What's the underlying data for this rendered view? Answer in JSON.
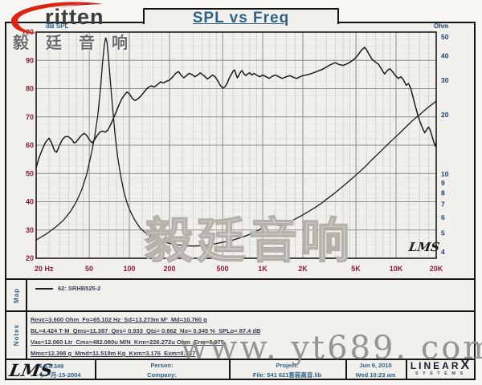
{
  "title": "SPL vs Freq",
  "logo": {
    "brand": "ritten",
    "chinese": "毅廷音响"
  },
  "watermarks": {
    "chart": "毅廷音响",
    "site": "www. yt689. com",
    "lms_signature": "LMS"
  },
  "map": {
    "label": "Map",
    "legend": "62: SRHB525-2"
  },
  "notes": {
    "label": "Notes",
    "lines": [
      "Revc=3.600 Ohm  Fo=65.102 Hz  Sd=13.273m M²  Md=10.760 g",
      "BL=4.424 T·M  Qms=11.387  Qes= 0.933  Qts= 0.862  No= 0.345 %  SPLo= 87.4 dB",
      "Vas=12.060 Ltr  Cms=482.080u M/N  Krm=226.272u Ohm  Erm=0.975",
      "Mms=12.398 g  Mmd=11.518m Kg  Kxm=3.176  Exm=0.737"
    ]
  },
  "footer": {
    "lms_logo": "LMS",
    "version": "4.5.0.349",
    "version_date": "十一月-15-2004",
    "person_label": "Person:",
    "company_label": "Company:",
    "project_label": "Project:",
    "project_file": "File: 541  621套装高音.lib",
    "date": "Jun  9, 2010",
    "time": "Wed 10:23 am",
    "brand_linear": "LINEAR",
    "brand_x": "X",
    "brand_systems": "S Y S T E M S"
  },
  "colors": {
    "accent_blue": "#2d6288",
    "tick_red": "#8a1c2e",
    "tick_navy": "#1f3f77",
    "logo_red": "#de2411",
    "curve": "#1b1b1b"
  },
  "chart_data": {
    "type": "line",
    "title": "SPL vs Freq",
    "x_axis": {
      "unit": "Hz",
      "scale": "log",
      "min": 20,
      "max": 20000,
      "ticks": [
        "20 Hz",
        "50",
        "100",
        "200",
        "500",
        "1K",
        "2K",
        "5K",
        "10K",
        "20K"
      ],
      "tick_values": [
        20,
        50,
        100,
        200,
        500,
        1000,
        2000,
        5000,
        10000,
        20000
      ]
    },
    "y_left": {
      "label": "dB SPL",
      "scale": "linear",
      "min": 20,
      "max": 100,
      "ticks": [
        100,
        90,
        80,
        70,
        60,
        50,
        40,
        30,
        20
      ]
    },
    "y_right": {
      "label": "Ohm",
      "scale": "log",
      "min": 4,
      "max": 50,
      "ticks": [
        50,
        40,
        30,
        20,
        10,
        9,
        8,
        7,
        6,
        5,
        4
      ]
    },
    "legend_position": "map-strip-below-chart",
    "grid": "dense log-log with dotted minors",
    "series": [
      {
        "name": "SPL (62: SRHB525-2)",
        "axis": "left",
        "unit": "dB",
        "points": [
          [
            20,
            52
          ],
          [
            21,
            55.5
          ],
          [
            22,
            58
          ],
          [
            23.5,
            61
          ],
          [
            25,
            62.5
          ],
          [
            26,
            61
          ],
          [
            27.5,
            58
          ],
          [
            28.5,
            57.5
          ],
          [
            30,
            60
          ],
          [
            31.5,
            62
          ],
          [
            33,
            63
          ],
          [
            35,
            63
          ],
          [
            37,
            62
          ],
          [
            38.5,
            60.8
          ],
          [
            40,
            61.2
          ],
          [
            42,
            62.5
          ],
          [
            44,
            63.6
          ],
          [
            46,
            64.2
          ],
          [
            48,
            63.4
          ],
          [
            50,
            62
          ],
          [
            52.5,
            60.8
          ],
          [
            55,
            62
          ],
          [
            57.5,
            63.5
          ],
          [
            60,
            64.6
          ],
          [
            63,
            65
          ],
          [
            66,
            64.6
          ],
          [
            69,
            65.4
          ],
          [
            72,
            67
          ],
          [
            76,
            69.5
          ],
          [
            80,
            72
          ],
          [
            84,
            74.5
          ],
          [
            88,
            76.5
          ],
          [
            92,
            77.8
          ],
          [
            96,
            78.8
          ],
          [
            100,
            78.2
          ],
          [
            105,
            76.6
          ],
          [
            110,
            75.8
          ],
          [
            116,
            76.4
          ],
          [
            122,
            77.4
          ],
          [
            130,
            79
          ],
          [
            138,
            80.4
          ],
          [
            146,
            81
          ],
          [
            154,
            80.6
          ],
          [
            162,
            81.4
          ],
          [
            172,
            82.4
          ],
          [
            180,
            82
          ],
          [
            190,
            82.6
          ],
          [
            200,
            83
          ],
          [
            212,
            84.2
          ],
          [
            224,
            85.6
          ],
          [
            234,
            86
          ],
          [
            244,
            84.8
          ],
          [
            256,
            83.8
          ],
          [
            268,
            84.6
          ],
          [
            280,
            85.4
          ],
          [
            295,
            85
          ],
          [
            310,
            84.2
          ],
          [
            325,
            84.8
          ],
          [
            340,
            85.6
          ],
          [
            355,
            84.9
          ],
          [
            370,
            84.2
          ],
          [
            385,
            83.4
          ],
          [
            400,
            84
          ],
          [
            420,
            84.8
          ],
          [
            440,
            84.2
          ],
          [
            460,
            82.8
          ],
          [
            480,
            81.2
          ],
          [
            500,
            80.2
          ],
          [
            520,
            80.6
          ],
          [
            540,
            81.8
          ],
          [
            560,
            83.6
          ],
          [
            580,
            85
          ],
          [
            600,
            86.2
          ],
          [
            615,
            86.6
          ],
          [
            630,
            85.2
          ],
          [
            645,
            83.8
          ],
          [
            660,
            84.6
          ],
          [
            680,
            85.8
          ],
          [
            700,
            86.4
          ],
          [
            720,
            85.4
          ],
          [
            745,
            84.6
          ],
          [
            770,
            85.2
          ],
          [
            800,
            85.6
          ],
          [
            830,
            84.8
          ],
          [
            860,
            85.4
          ],
          [
            900,
            84.8
          ],
          [
            950,
            84.2
          ],
          [
            1000,
            84.8
          ],
          [
            1060,
            84.2
          ],
          [
            1120,
            83.6
          ],
          [
            1180,
            84.4
          ],
          [
            1250,
            84.8
          ],
          [
            1320,
            84.2
          ],
          [
            1400,
            83.6
          ],
          [
            1500,
            84.2
          ],
          [
            1600,
            84.6
          ],
          [
            1700,
            84
          ],
          [
            1800,
            83.6
          ],
          [
            1900,
            84.2
          ],
          [
            2000,
            84.6
          ],
          [
            2200,
            85
          ],
          [
            2400,
            85.6
          ],
          [
            2600,
            86.2
          ],
          [
            2800,
            86.8
          ],
          [
            3000,
            87.6
          ],
          [
            3200,
            88.4
          ],
          [
            3500,
            89.2
          ],
          [
            3700,
            88.6
          ],
          [
            4000,
            88.2
          ],
          [
            4300,
            88.8
          ],
          [
            4600,
            89.6
          ],
          [
            4900,
            90.6
          ],
          [
            5200,
            92
          ],
          [
            5500,
            93.6
          ],
          [
            5800,
            94.6
          ],
          [
            6000,
            93.8
          ],
          [
            6300,
            92
          ],
          [
            6600,
            90.4
          ],
          [
            7000,
            89.4
          ],
          [
            7400,
            88.6
          ],
          [
            7800,
            86.8
          ],
          [
            8200,
            85.2
          ],
          [
            8600,
            86.4
          ],
          [
            9000,
            87
          ],
          [
            9400,
            86
          ],
          [
            9900,
            84.6
          ],
          [
            10400,
            83.6
          ],
          [
            10900,
            84.2
          ],
          [
            11400,
            83
          ],
          [
            11900,
            81.2
          ],
          [
            12400,
            81.8
          ],
          [
            12900,
            80
          ],
          [
            13400,
            77
          ],
          [
            14000,
            73.5
          ],
          [
            14600,
            70.5
          ],
          [
            15200,
            68
          ],
          [
            15800,
            66
          ],
          [
            16400,
            64.4
          ],
          [
            17000,
            65.6
          ],
          [
            17500,
            66.4
          ],
          [
            18000,
            65.4
          ],
          [
            18600,
            63.2
          ],
          [
            19200,
            61
          ],
          [
            19700,
            59.6
          ],
          [
            20000,
            61
          ]
        ]
      },
      {
        "name": "Impedance",
        "axis": "right",
        "unit": "Ohm",
        "points": [
          [
            20,
            4.6
          ],
          [
            24,
            4.95
          ],
          [
            28,
            5.35
          ],
          [
            32,
            5.8
          ],
          [
            36,
            6.4
          ],
          [
            40,
            7.2
          ],
          [
            44,
            8.3
          ],
          [
            48,
            10
          ],
          [
            52,
            12.8
          ],
          [
            55,
            15.5
          ],
          [
            58,
            20
          ],
          [
            61,
            28
          ],
          [
            63,
            37
          ],
          [
            65,
            46
          ],
          [
            66.5,
            49.5
          ],
          [
            68,
            47
          ],
          [
            70,
            38
          ],
          [
            72,
            30
          ],
          [
            75,
            21.5
          ],
          [
            78,
            16
          ],
          [
            82,
            12
          ],
          [
            86,
            9.8
          ],
          [
            91,
            8.1
          ],
          [
            96,
            7.1
          ],
          [
            102,
            6.4
          ],
          [
            110,
            5.8
          ],
          [
            120,
            5.3
          ],
          [
            132,
            5
          ],
          [
            145,
            4.8
          ],
          [
            160,
            4.62
          ],
          [
            180,
            4.5
          ],
          [
            200,
            4.42
          ],
          [
            230,
            4.35
          ],
          [
            260,
            4.3
          ],
          [
            300,
            4.28
          ],
          [
            350,
            4.3
          ],
          [
            400,
            4.34
          ],
          [
            460,
            4.42
          ],
          [
            520,
            4.5
          ],
          [
            600,
            4.6
          ],
          [
            680,
            4.72
          ],
          [
            760,
            4.85
          ],
          [
            850,
            5
          ],
          [
            950,
            5.2
          ],
          [
            1050,
            5.42
          ],
          [
            1150,
            5.62
          ],
          [
            1250,
            5.5
          ],
          [
            1350,
            5.45
          ],
          [
            1500,
            5.58
          ],
          [
            1700,
            5.82
          ],
          [
            1900,
            6.05
          ],
          [
            2100,
            6.3
          ],
          [
            2400,
            6.65
          ],
          [
            2700,
            7
          ],
          [
            3000,
            7.4
          ],
          [
            3400,
            7.9
          ],
          [
            3800,
            8.4
          ],
          [
            4200,
            8.9
          ],
          [
            4700,
            9.5
          ],
          [
            5200,
            10.1
          ],
          [
            5800,
            10.8
          ],
          [
            6500,
            11.7
          ],
          [
            7200,
            12.5
          ],
          [
            8000,
            13.4
          ],
          [
            9000,
            14.5
          ],
          [
            10000,
            15.5
          ],
          [
            11000,
            16.5
          ],
          [
            12000,
            17.5
          ],
          [
            13200,
            18.6
          ],
          [
            14400,
            19.6
          ],
          [
            15600,
            20.5
          ],
          [
            17000,
            21.6
          ],
          [
            18400,
            22.5
          ],
          [
            19200,
            23
          ],
          [
            20000,
            23.6
          ]
        ]
      }
    ]
  }
}
